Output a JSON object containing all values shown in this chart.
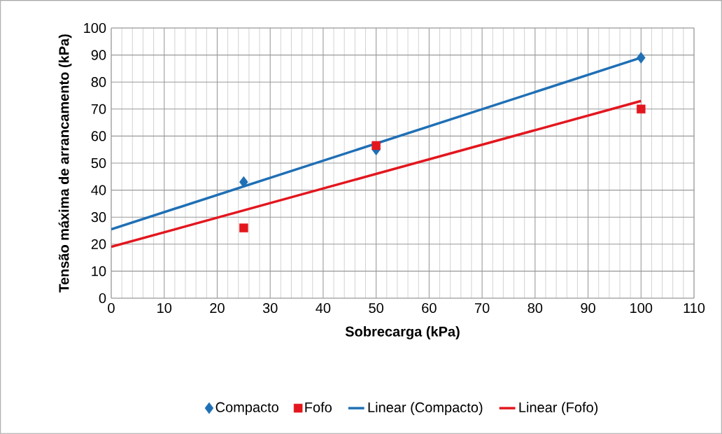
{
  "chart_data": {
    "type": "scatter",
    "xlabel": "Sobrecarga (kPa)",
    "ylabel": "Tensão máxima de arrancamento (kPa)",
    "xlim": [
      0,
      110
    ],
    "xticks": [
      0,
      10,
      20,
      30,
      40,
      50,
      60,
      70,
      80,
      90,
      100,
      110
    ],
    "ylim": [
      0,
      100
    ],
    "yticks": [
      0,
      10,
      20,
      30,
      40,
      50,
      60,
      70,
      80,
      90,
      100
    ],
    "grid": true,
    "legend": "bottom",
    "series": [
      {
        "name": "Compacto",
        "marker": "diamond",
        "color": "#1f6fb5",
        "x": [
          25,
          50,
          100
        ],
        "values": [
          43,
          55,
          89
        ]
      },
      {
        "name": "Fofo",
        "marker": "square",
        "color": "#e3161e",
        "x": [
          25,
          50,
          100
        ],
        "values": [
          26,
          56.5,
          70
        ]
      },
      {
        "name": "Linear (Compacto)",
        "type": "line",
        "color": "#1f6fb5",
        "x": [
          0,
          100
        ],
        "values": [
          25.5,
          89
        ]
      },
      {
        "name": "Linear (Fofo)",
        "type": "line",
        "color": "#e3161e",
        "x": [
          0,
          100
        ],
        "values": [
          19,
          73
        ]
      }
    ]
  }
}
